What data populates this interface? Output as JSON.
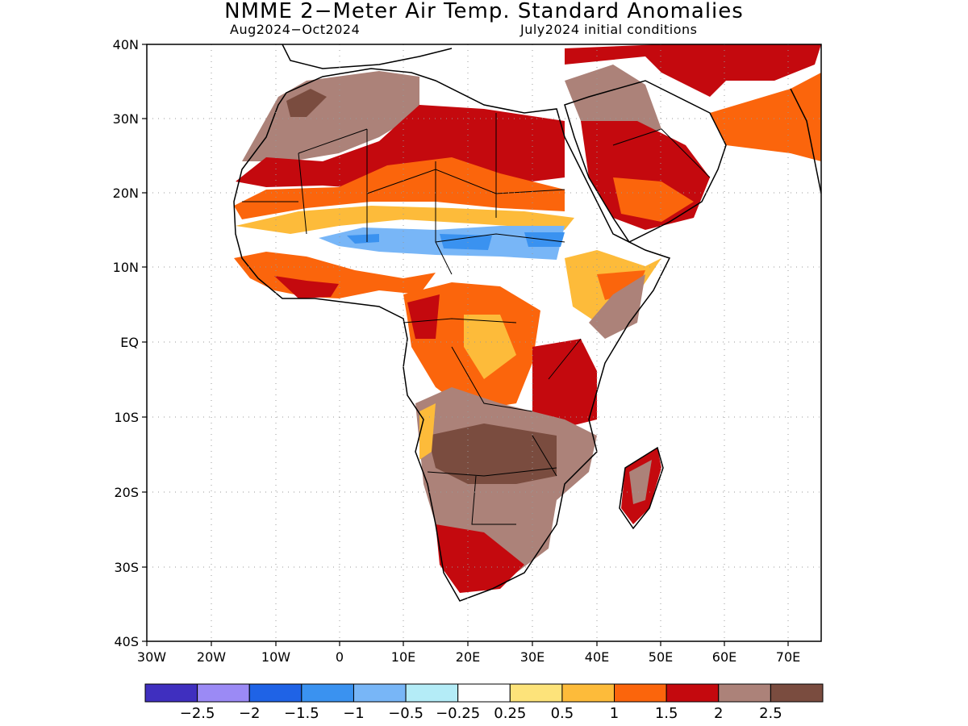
{
  "title": "NMME 2−Meter Air Temp. Standard Anomalies",
  "subtitle_left": "Aug2024−Oct2024",
  "subtitle_right": "July2024 initial conditions",
  "lat_labels": [
    "40N",
    "30N",
    "20N",
    "10N",
    "EQ",
    "10S",
    "20S",
    "30S",
    "40S"
  ],
  "lon_labels": [
    "30W",
    "20W",
    "10W",
    "0",
    "10E",
    "20E",
    "30E",
    "40E",
    "50E",
    "60E",
    "70E"
  ],
  "colorbar": {
    "colors": [
      "#3f2fbf",
      "#9b8af5",
      "#1f63e6",
      "#3a92f0",
      "#78b6f7",
      "#b4ecf7",
      "#ffffff",
      "#fde37a",
      "#fdbb3a",
      "#fb650c",
      "#c4090e",
      "#ac8279",
      "#7a4c3f"
    ],
    "labels": [
      "−2.5",
      "−2",
      "−1.5",
      "−1",
      "−0.5",
      "−0.25",
      "0.25",
      "0.5",
      "1",
      "1.5",
      "2",
      "2.5"
    ]
  }
}
